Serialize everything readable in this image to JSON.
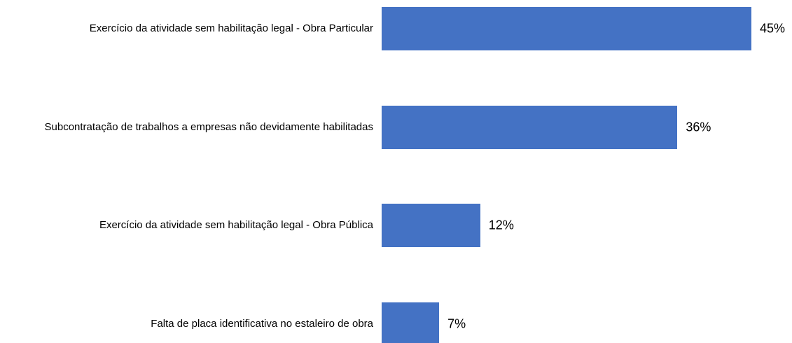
{
  "chart_data": {
    "type": "bar",
    "orientation": "horizontal",
    "categories": [
      "Exercício da atividade sem habilitação legal - Obra Particular",
      "Subcontratação de trabalhos a empresas não devidamente habilitadas",
      "Exercício da atividade sem habilitação legal - Obra Pública",
      "Falta de placa identificativa no estaleiro de obra"
    ],
    "values": [
      45,
      36,
      12,
      7
    ],
    "value_labels": [
      "45%",
      "36%",
      "12%",
      "7%"
    ],
    "color": "#4472c4"
  }
}
